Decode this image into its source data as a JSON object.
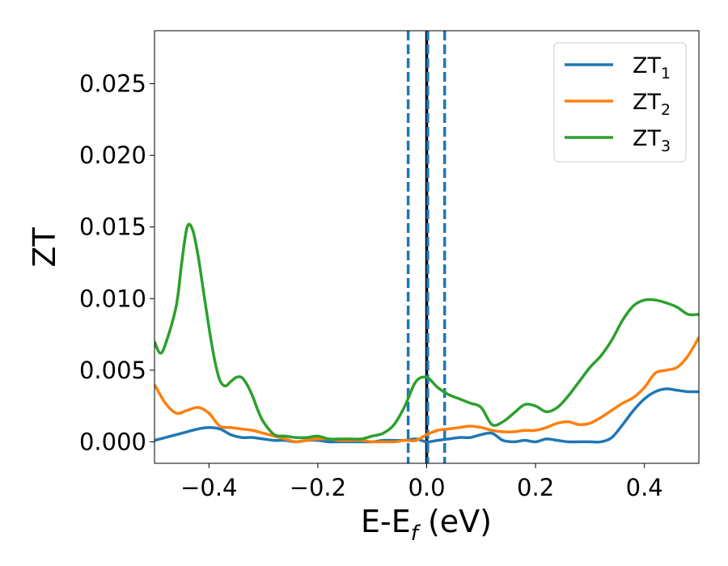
{
  "chart_data": {
    "type": "line",
    "title": "",
    "xlabel": "E-E",
    "xlabel_sub": "f",
    "xlabel_unit": " (eV)",
    "ylabel": "ZT",
    "xlim": [
      -0.5,
      0.5
    ],
    "ylim": [
      -0.0015,
      0.0287
    ],
    "xticks": [
      -0.4,
      -0.2,
      0.0,
      0.2,
      0.4
    ],
    "xtick_labels": [
      "−0.4",
      "−0.2",
      "0.0",
      "0.2",
      "0.4"
    ],
    "yticks": [
      0.0,
      0.005,
      0.01,
      0.015,
      0.02,
      0.025
    ],
    "ytick_labels": [
      "0.000",
      "0.005",
      "0.010",
      "0.015",
      "0.020",
      "0.025"
    ],
    "grid": false,
    "legend_position": "top-right",
    "vlines": [
      {
        "x": 0.0,
        "color": "#000000",
        "style": "solid"
      },
      {
        "x": -0.034,
        "color": "#1f77b4",
        "style": "dashed"
      },
      {
        "x": 0.002,
        "color": "#1f77b4",
        "style": "dashed"
      },
      {
        "x": 0.033,
        "color": "#1f77b4",
        "style": "dashed"
      }
    ],
    "series": [
      {
        "name": "ZT",
        "sub": "1",
        "color": "#1f77b4",
        "x": [
          -0.5,
          -0.45,
          -0.42,
          -0.4,
          -0.38,
          -0.36,
          -0.34,
          -0.32,
          -0.3,
          -0.28,
          -0.26,
          -0.24,
          -0.22,
          -0.2,
          -0.18,
          -0.16,
          -0.14,
          -0.12,
          -0.1,
          -0.08,
          -0.06,
          -0.04,
          -0.02,
          0.0,
          0.02,
          0.04,
          0.06,
          0.08,
          0.1,
          0.12,
          0.14,
          0.16,
          0.18,
          0.2,
          0.22,
          0.24,
          0.26,
          0.28,
          0.3,
          0.32,
          0.34,
          0.36,
          0.38,
          0.4,
          0.42,
          0.44,
          0.46,
          0.48,
          0.5
        ],
        "y": [
          0.0001,
          0.0006,
          0.0009,
          0.001,
          0.0009,
          0.0005,
          0.0003,
          0.0003,
          0.0002,
          0.0001,
          0.0001,
          0.0,
          0.0001,
          0.0001,
          0.0,
          0.0,
          0.0,
          0.0,
          0.0,
          0.0001,
          0.0001,
          0.0001,
          0.0002,
          0.0,
          0.0001,
          0.0002,
          0.0003,
          0.0003,
          0.0005,
          0.0006,
          0.0001,
          0.0,
          0.0001,
          0.0,
          0.0002,
          0.0001,
          0.0,
          0.0,
          0.0,
          0.0,
          0.0003,
          0.0012,
          0.0022,
          0.003,
          0.0035,
          0.0037,
          0.0036,
          0.0035,
          0.0035
        ]
      },
      {
        "name": "ZT",
        "sub": "2",
        "color": "#ff7f0e",
        "x": [
          -0.5,
          -0.48,
          -0.46,
          -0.44,
          -0.42,
          -0.4,
          -0.38,
          -0.36,
          -0.34,
          -0.32,
          -0.3,
          -0.28,
          -0.26,
          -0.24,
          -0.22,
          -0.2,
          -0.18,
          -0.16,
          -0.14,
          -0.12,
          -0.1,
          -0.08,
          -0.06,
          -0.04,
          -0.02,
          0.0,
          0.02,
          0.04,
          0.06,
          0.08,
          0.1,
          0.12,
          0.14,
          0.16,
          0.18,
          0.2,
          0.22,
          0.24,
          0.26,
          0.28,
          0.3,
          0.32,
          0.34,
          0.36,
          0.38,
          0.4,
          0.42,
          0.44,
          0.46,
          0.48,
          0.5
        ],
        "y": [
          0.004,
          0.0027,
          0.002,
          0.0022,
          0.0024,
          0.002,
          0.0011,
          0.001,
          0.0009,
          0.0008,
          0.0006,
          0.0004,
          0.0002,
          0.0,
          0.0001,
          0.0002,
          0.0002,
          0.0001,
          0.0001,
          0.0001,
          0.0,
          0.0,
          0.0,
          0.0001,
          0.0001,
          0.0005,
          0.0008,
          0.0009,
          0.001,
          0.0011,
          0.001,
          0.0008,
          0.0007,
          0.0007,
          0.0008,
          0.0008,
          0.001,
          0.0013,
          0.0014,
          0.0012,
          0.0013,
          0.0017,
          0.0022,
          0.0027,
          0.0031,
          0.0038,
          0.0048,
          0.005,
          0.0052,
          0.006,
          0.0073
        ]
      },
      {
        "name": "ZT",
        "sub": "3",
        "color": "#2ca02c",
        "x": [
          -0.5,
          -0.49,
          -0.48,
          -0.46,
          -0.45,
          -0.44,
          -0.43,
          -0.42,
          -0.41,
          -0.4,
          -0.39,
          -0.38,
          -0.37,
          -0.36,
          -0.35,
          -0.34,
          -0.33,
          -0.32,
          -0.31,
          -0.3,
          -0.28,
          -0.26,
          -0.24,
          -0.22,
          -0.2,
          -0.18,
          -0.16,
          -0.14,
          -0.12,
          -0.1,
          -0.08,
          -0.06,
          -0.04,
          -0.02,
          0.0,
          0.02,
          0.04,
          0.06,
          0.08,
          0.1,
          0.12,
          0.14,
          0.16,
          0.18,
          0.2,
          0.22,
          0.24,
          0.26,
          0.28,
          0.3,
          0.32,
          0.34,
          0.36,
          0.38,
          0.4,
          0.42,
          0.44,
          0.46,
          0.48,
          0.5
        ],
        "y": [
          0.007,
          0.0062,
          0.0068,
          0.0095,
          0.0125,
          0.015,
          0.0148,
          0.013,
          0.0105,
          0.008,
          0.0058,
          0.0043,
          0.0039,
          0.0042,
          0.0045,
          0.0045,
          0.004,
          0.0032,
          0.0022,
          0.0014,
          0.0005,
          0.0004,
          0.0003,
          0.0003,
          0.0004,
          0.0002,
          0.0002,
          0.0002,
          0.0002,
          0.0004,
          0.0006,
          0.0012,
          0.0025,
          0.0042,
          0.0045,
          0.0038,
          0.0033,
          0.003,
          0.0027,
          0.0024,
          0.0012,
          0.0014,
          0.002,
          0.0026,
          0.0025,
          0.0021,
          0.0024,
          0.0032,
          0.0042,
          0.0052,
          0.006,
          0.0071,
          0.0085,
          0.0095,
          0.0099,
          0.0099,
          0.0097,
          0.0094,
          0.0089,
          0.0089
        ]
      }
    ]
  }
}
